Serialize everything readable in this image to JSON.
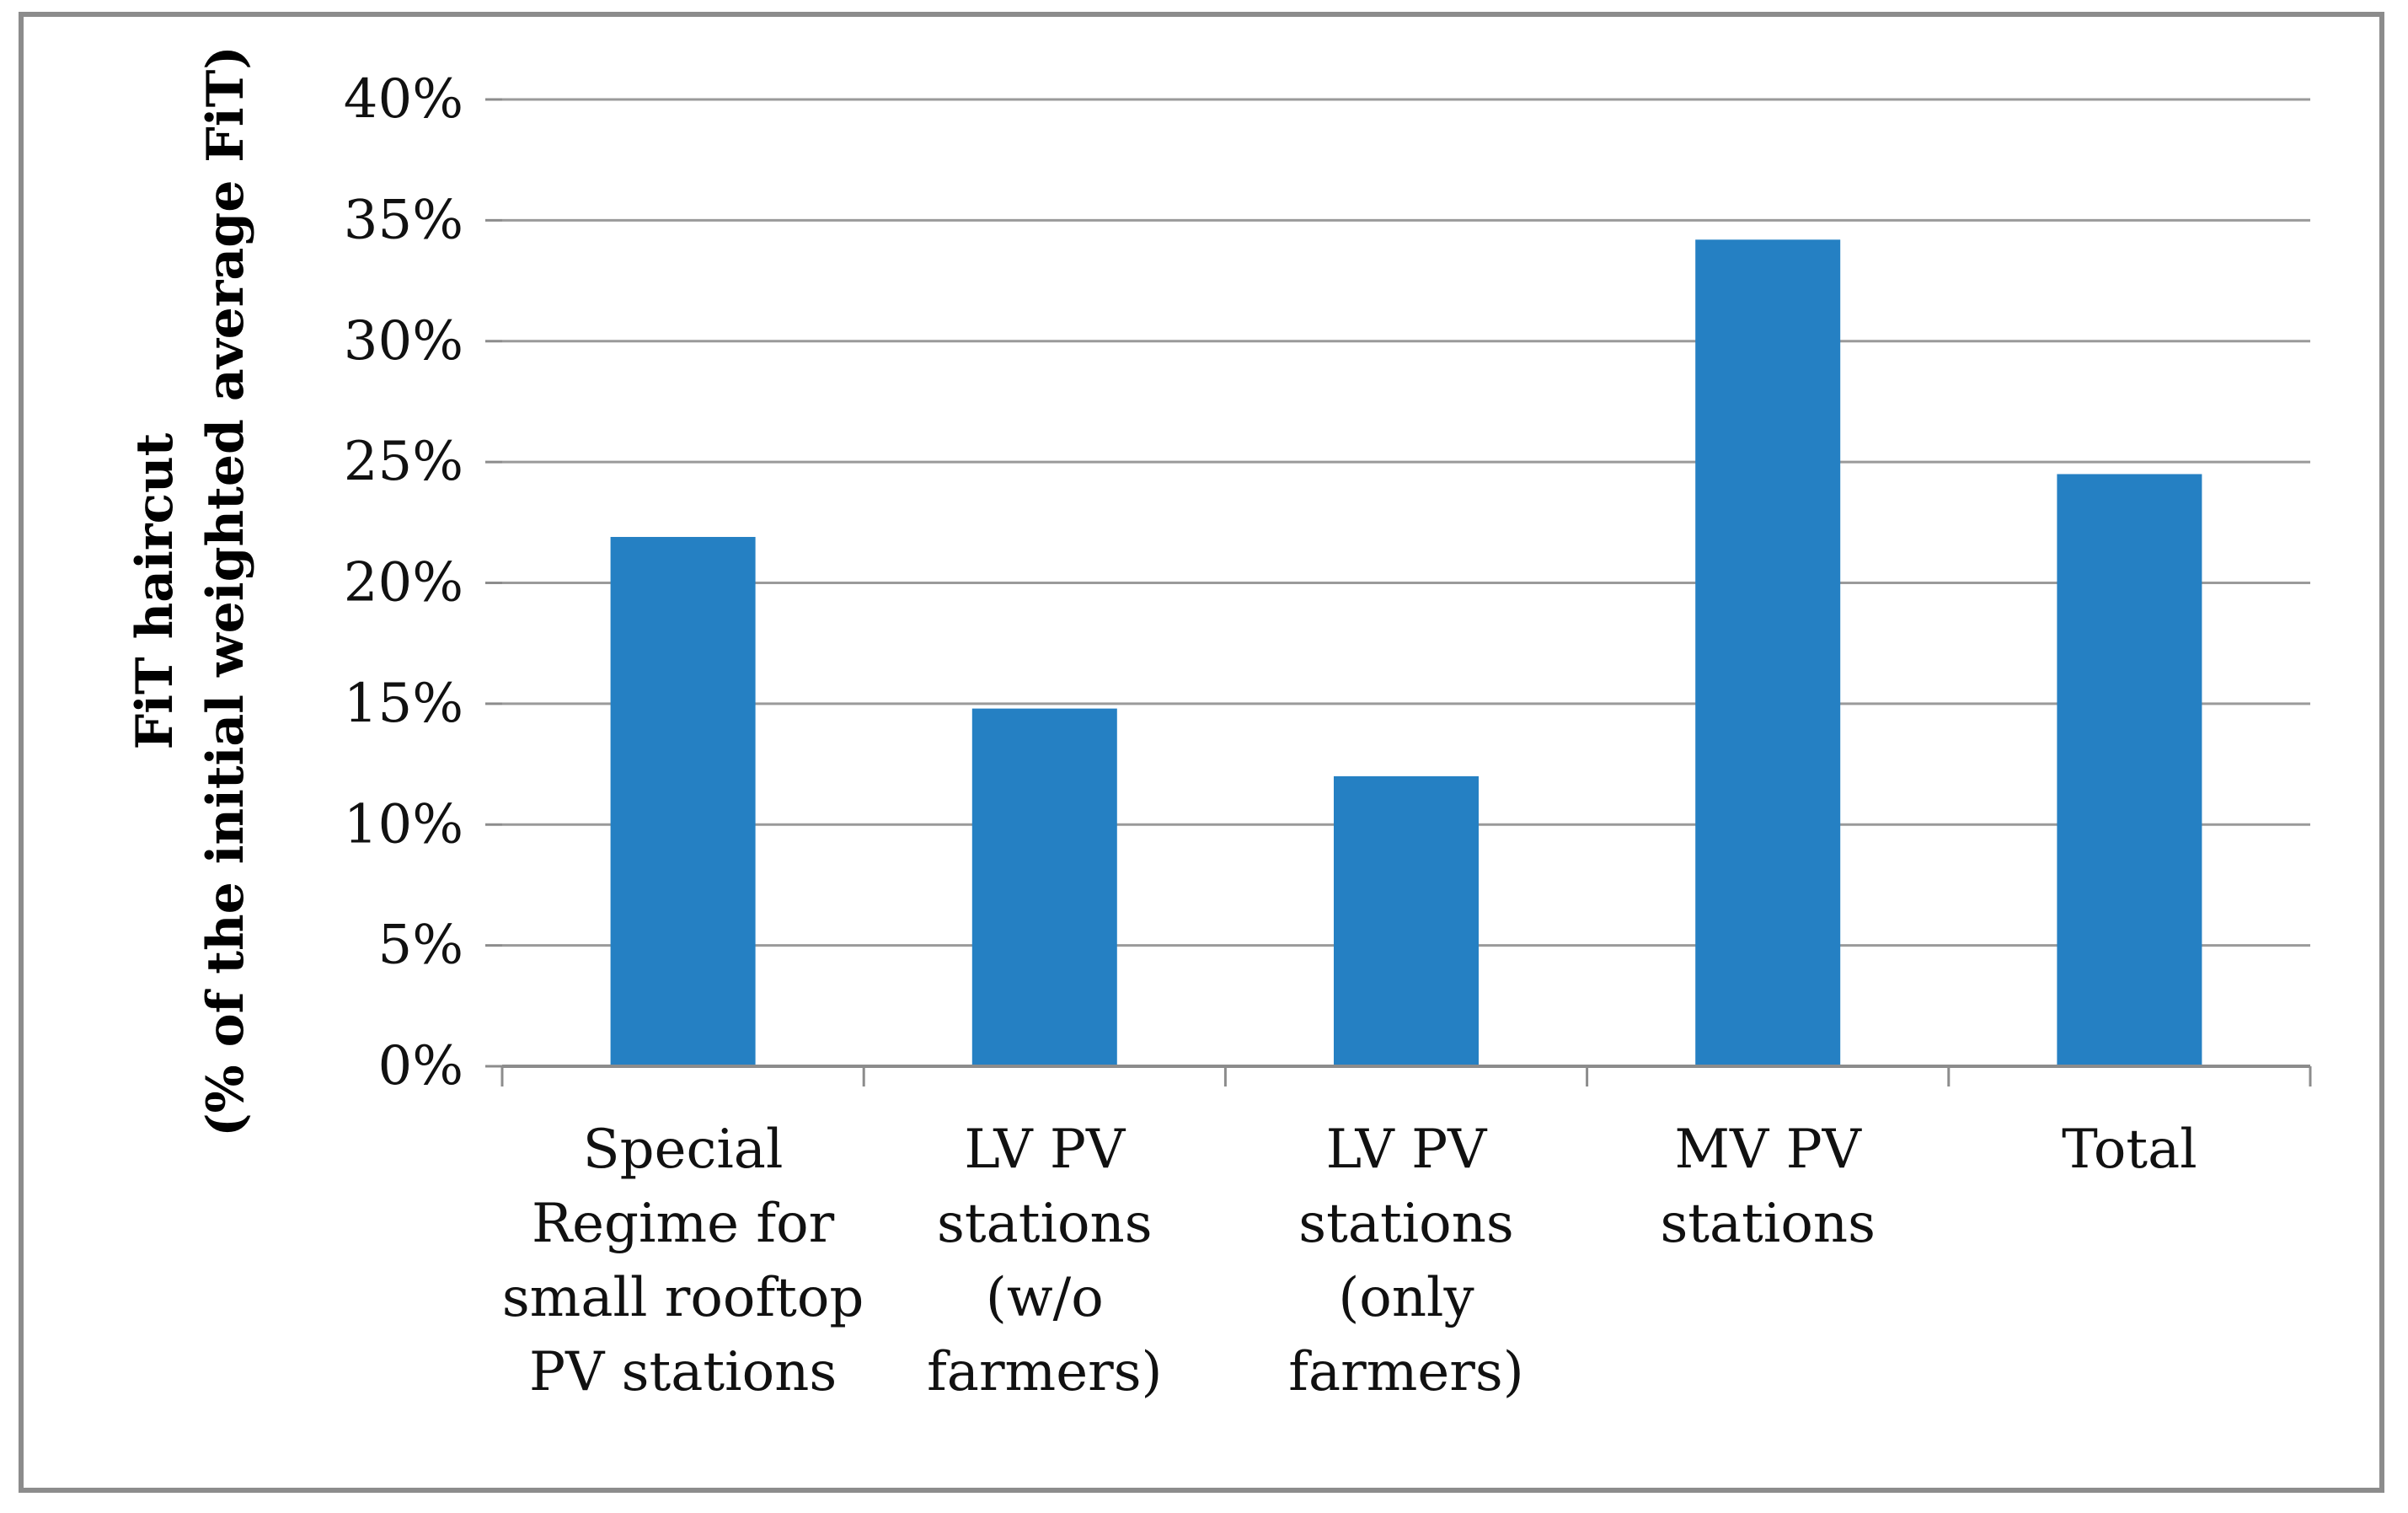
{
  "chart_data": {
    "type": "bar",
    "title": "",
    "xlabel": "",
    "ylabel_lines": [
      "FiT haircut",
      "(% of the initial weighted average FiT)"
    ],
    "categories": [
      [
        "Special",
        "Regime for",
        "small rooftop",
        "PV stations"
      ],
      [
        "LV PV",
        "stations",
        "(w/o",
        "farmers)"
      ],
      [
        "LV PV",
        "stations",
        "(only",
        "farmers)"
      ],
      [
        "MV PV",
        "stations"
      ],
      [
        "Total"
      ]
    ],
    "values": [
      21.9,
      14.8,
      12.0,
      34.2,
      24.5
    ],
    "ylim": [
      0,
      40
    ],
    "yticks": [
      0,
      5,
      10,
      15,
      20,
      25,
      30,
      35,
      40
    ],
    "ytick_labels": [
      "0%",
      "5%",
      "10%",
      "15%",
      "20%",
      "25%",
      "30%",
      "35%",
      "40%"
    ],
    "grid": true,
    "legend": "none",
    "bar_color": "#2580c3",
    "grid_color": "#9a9a9a",
    "axis_color": "#8c8c8c"
  }
}
